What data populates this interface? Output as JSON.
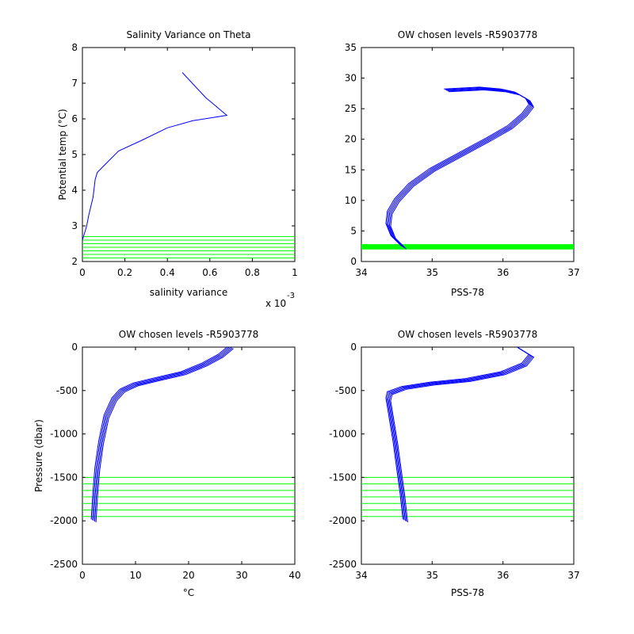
{
  "chart_data": [
    {
      "type": "line",
      "title": "Salinity Variance on Theta",
      "xlabel": "salinity variance",
      "ylabel": "Potential temp (°C)",
      "x_exponent_label": "x 10",
      "x_exponent_power": "-3",
      "xlim": [
        0,
        0.001
      ],
      "ylim": [
        2,
        8
      ],
      "xticks": [
        0,
        0.0002,
        0.0004,
        0.0006,
        0.0008,
        0.001
      ],
      "xtick_labels": [
        "0",
        "0.2",
        "0.4",
        "0.6",
        "0.8",
        "1"
      ],
      "yticks": [
        2,
        3,
        4,
        5,
        6,
        7,
        8
      ],
      "ytick_labels": [
        "2",
        "3",
        "4",
        "5",
        "6",
        "7",
        "8"
      ],
      "series_color": "#0000ff",
      "chosen_level_color": "#00ff00",
      "series": [
        {
          "x": [
            0.00047,
            0.00058,
            0.00068,
            0.00052,
            0.0004,
            0.00028,
            0.00017,
            0.00012,
            7e-05,
            6e-05,
            5e-05,
            3e-05,
            2e-05,
            1e-05,
            0.0
          ],
          "y": [
            7.3,
            6.6,
            6.1,
            5.95,
            5.75,
            5.4,
            5.1,
            4.8,
            4.5,
            4.3,
            3.8,
            3.3,
            3.0,
            2.8,
            2.6
          ]
        }
      ],
      "chosen_levels": [
        2.1,
        2.2,
        2.3,
        2.4,
        2.5,
        2.6,
        2.7
      ]
    },
    {
      "type": "line",
      "title": "OW chosen levels -R5903778",
      "xlabel": "PSS-78",
      "ylabel": "",
      "xlim": [
        34,
        37
      ],
      "ylim": [
        0,
        35
      ],
      "xticks": [
        34,
        35,
        36,
        37
      ],
      "xtick_labels": [
        "34",
        "35",
        "36",
        "37"
      ],
      "yticks": [
        0,
        5,
        10,
        15,
        20,
        25,
        30,
        35
      ],
      "ytick_labels": [
        "0",
        "5",
        "10",
        "15",
        "20",
        "25",
        "30",
        "35"
      ],
      "series_color": "#0000ff",
      "chosen_level_color": "#00ff00",
      "profile": {
        "salinity": [
          34.6,
          34.45,
          34.38,
          34.4,
          34.5,
          34.7,
          35.0,
          35.4,
          35.8,
          36.1,
          36.3,
          36.4,
          36.35,
          36.2,
          36.0,
          35.7,
          35.2
        ],
        "theta": [
          2.3,
          4.0,
          6.0,
          8.0,
          10.0,
          12.5,
          15.0,
          17.5,
          20.0,
          22.0,
          24.0,
          25.5,
          26.5,
          27.5,
          28.0,
          28.3,
          28.0
        ]
      },
      "chosen_levels": [
        2.1,
        2.2,
        2.3,
        2.4,
        2.5,
        2.6,
        2.7
      ]
    },
    {
      "type": "line",
      "title": "OW chosen levels -R5903778",
      "xlabel": "°C",
      "ylabel": "Pressure (dbar)",
      "xlim": [
        0,
        40
      ],
      "ylim": [
        -2500,
        0
      ],
      "xticks": [
        0,
        10,
        20,
        30,
        40
      ],
      "xtick_labels": [
        "0",
        "10",
        "20",
        "30",
        "40"
      ],
      "yticks": [
        -2500,
        -2000,
        -1500,
        -1000,
        -500,
        0
      ],
      "ytick_labels": [
        "-2500",
        "-2000",
        "-1500",
        "-1000",
        "-500",
        "0"
      ],
      "series_color": "#0000ff",
      "chosen_level_color": "#00ff00",
      "profile": {
        "temperature": [
          2.1,
          2.4,
          2.8,
          3.5,
          4.5,
          6.0,
          7.5,
          10.0,
          14.0,
          19.0,
          23.0,
          26.0,
          28.0
        ],
        "pressure": [
          -2000,
          -1700,
          -1400,
          -1100,
          -800,
          -600,
          -500,
          -430,
          -370,
          -300,
          -200,
          -100,
          0
        ]
      },
      "chosen_levels": [
        -1500,
        -1575,
        -1650,
        -1725,
        -1800,
        -1875,
        -1950
      ]
    },
    {
      "type": "line",
      "title": "OW chosen levels -R5903778",
      "xlabel": "PSS-78",
      "ylabel": "",
      "xlim": [
        34,
        37
      ],
      "ylim": [
        -2500,
        0
      ],
      "xticks": [
        34,
        35,
        36,
        37
      ],
      "xtick_labels": [
        "34",
        "35",
        "36",
        "37"
      ],
      "yticks": [
        -2500,
        -2000,
        -1500,
        -1000,
        -500,
        0
      ],
      "ytick_labels": [
        "-2500",
        "-2000",
        "-1500",
        "-1000",
        "-500",
        "0"
      ],
      "series_color": "#0000ff",
      "chosen_level_color": "#00ff00",
      "profile": {
        "salinity": [
          34.62,
          34.58,
          34.53,
          34.48,
          34.42,
          34.38,
          34.4,
          34.6,
          35.0,
          35.5,
          36.0,
          36.3,
          36.4,
          36.2
        ],
        "pressure": [
          -2000,
          -1700,
          -1400,
          -1100,
          -800,
          -600,
          -530,
          -470,
          -420,
          -380,
          -300,
          -200,
          -100,
          0
        ]
      },
      "chosen_levels": [
        -1500,
        -1575,
        -1650,
        -1725,
        -1800,
        -1875,
        -1950
      ]
    }
  ]
}
